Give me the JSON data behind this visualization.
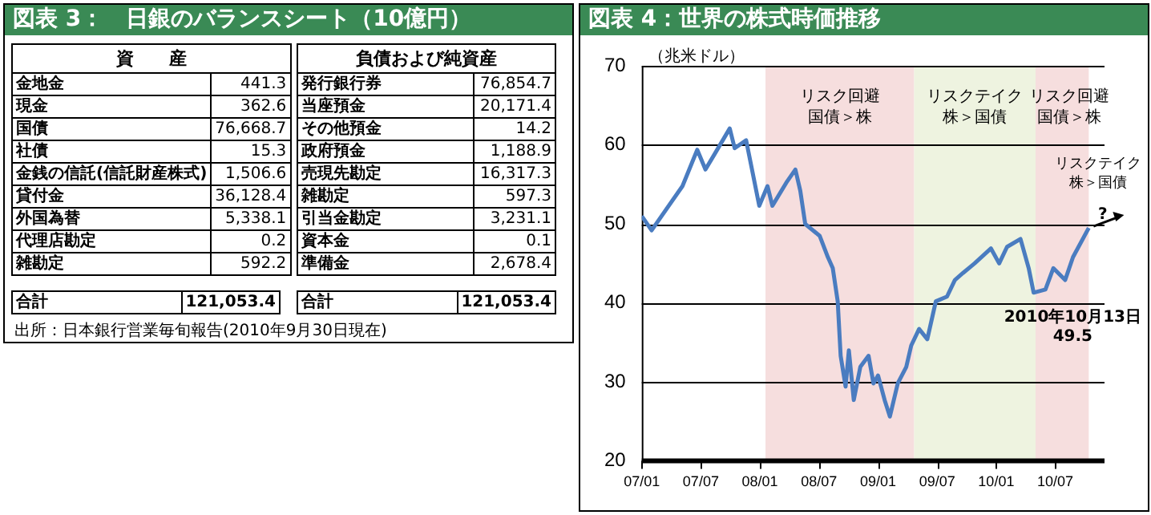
{
  "chart_data": [
    {
      "type": "other",
      "title": "図表 3：　日銀のバランスシート（10億円）",
      "categories": [
        "金地金",
        "現金",
        "国債",
        "社債",
        "金銭の信託(信託財産株式)",
        "貸付金",
        "外国為替",
        "代理店勘定",
        "雑勘定",
        "合計"
      ],
      "series": [
        {
          "name": "資　　産",
          "values": [
            441.3,
            362.6,
            76668.7,
            15.3,
            1506.6,
            36128.4,
            5338.1,
            0.2,
            592.2,
            121053.4
          ],
          "value_labels": [
            "441.3",
            "362.6",
            "76,668.7",
            "15.3",
            "1,506.6",
            "36,128.4",
            "5,338.1",
            "0.2",
            "592.2",
            "121,053.4"
          ]
        }
      ],
      "annotations": [
        "出所：日本銀行営業毎旬報告(2010年9月30日現在)"
      ]
    },
    {
      "type": "other",
      "categories": [
        "発行銀行券",
        "当座預金",
        "その他預金",
        "政府預金",
        "売現先勘定",
        "雑勘定",
        "引当金勘定",
        "資本金",
        "準備金",
        "合計"
      ],
      "series": [
        {
          "name": "負債および純資産",
          "values": [
            76854.7,
            20171.4,
            14.2,
            1188.9,
            16317.3,
            597.3,
            3231.1,
            0.1,
            2678.4,
            121053.4
          ],
          "value_labels": [
            "76,854.7",
            "20,171.4",
            "14.2",
            "1,188.9",
            "16,317.3",
            "597.3",
            "3,231.1",
            "0.1",
            "2,678.4",
            "121,053.4"
          ]
        }
      ]
    },
    {
      "type": "line",
      "title": "図表 4：世界の株式時価推移",
      "ylabel": "（兆米ドル）",
      "x": [
        "2007-01-01",
        "2007-02-01",
        "2007-05-05",
        "2007-06-20",
        "2007-07-15",
        "2007-08-15",
        "2007-09-29",
        "2007-10-14",
        "2007-11-19",
        "2007-12-04",
        "2007-12-29",
        "2008-01-24",
        "2008-02-09",
        "2008-03-24",
        "2008-04-19",
        "2008-05-04",
        "2008-05-19",
        "2008-07-03",
        "2008-07-28",
        "2008-08-13",
        "2008-08-28",
        "2008-09-07",
        "2008-09-22",
        "2008-10-02",
        "2008-10-17",
        "2008-11-07",
        "2008-12-02",
        "2008-12-17",
        "2009-01-01",
        "2009-01-21",
        "2009-02-07",
        "2009-03-01",
        "2009-03-27",
        "2009-04-12",
        "2009-05-06",
        "2009-06-01",
        "2009-06-27",
        "2009-08-01",
        "2009-08-25",
        "2009-09-20",
        "2009-10-25",
        "2009-12-15",
        "2010-01-10",
        "2010-02-04",
        "2010-03-15",
        "2010-04-10",
        "2010-04-25",
        "2010-06-01",
        "2010-06-25",
        "2010-08-01",
        "2010-08-25",
        "2010-10-13"
      ],
      "series": [
        {
          "color": "#4a7cc0",
          "values": [
            51.0,
            49.2,
            54.8,
            59.4,
            56.9,
            59.0,
            62.1,
            59.6,
            60.6,
            57.5,
            52.3,
            54.8,
            52.3,
            55.4,
            56.9,
            54.2,
            50.0,
            48.5,
            45.8,
            44.4,
            40.2,
            33.3,
            29.4,
            34.0,
            27.7,
            31.9,
            33.3,
            29.8,
            30.8,
            27.7,
            25.6,
            29.8,
            31.9,
            34.6,
            36.7,
            35.4,
            40.2,
            40.8,
            42.9,
            43.8,
            45.0,
            46.9,
            45.0,
            47.1,
            48.1,
            44.4,
            41.3,
            41.7,
            44.4,
            42.9,
            45.8,
            49.5
          ]
        }
      ],
      "xlim": [
        "2007-01",
        "2010-12"
      ],
      "xticks": [
        {
          "value": "2007-01",
          "label": "07/01"
        },
        {
          "value": "2007-07",
          "label": "07/07"
        },
        {
          "value": "2008-01",
          "label": "08/01"
        },
        {
          "value": "2008-07",
          "label": "08/07"
        },
        {
          "value": "2009-01",
          "label": "09/01"
        },
        {
          "value": "2009-07",
          "label": "09/07"
        },
        {
          "value": "2010-01",
          "label": "10/01"
        },
        {
          "value": "2010-07",
          "label": "10/07"
        }
      ],
      "ylim": [
        20,
        70
      ],
      "yticks": [
        20,
        30,
        40,
        50,
        60,
        70
      ],
      "grid": "y",
      "bands": [
        {
          "axis": "x",
          "from": "2008-01-18",
          "to": "2009-04-21",
          "label": "リスク回避",
          "color": "#f6dede"
        },
        {
          "axis": "x",
          "from": "2009-04-21",
          "to": "2010-05-01",
          "label": "リスクテイク",
          "color": "#eef3e0"
        },
        {
          "axis": "x",
          "from": "2010-05-01",
          "to": "2010-10-13",
          "label": "リスク回避",
          "color": "#f6dede"
        }
      ],
      "annotations": [
        "国債＞株",
        "株＞国債",
        "国債＞株",
        "リスクテイク",
        "株＞国債",
        "?",
        "2010年10月13日",
        "49.5"
      ]
    }
  ]
}
